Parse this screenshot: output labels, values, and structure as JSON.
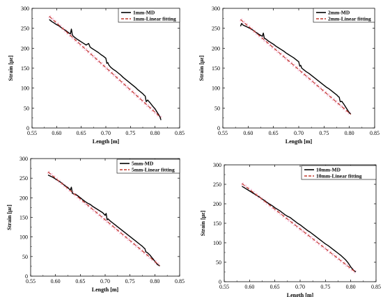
{
  "figure": {
    "background": "#ffffff",
    "colors": {
      "measured": "#000000",
      "fit": "#c0392b",
      "fit_glow": "#f2a0c8"
    }
  },
  "chart_data": [
    {
      "type": "line",
      "xlabel": "Length [m]",
      "ylabel": "Strain [µε]",
      "xlim": [
        0.55,
        0.85
      ],
      "ylim": [
        0,
        300
      ],
      "xticks": [
        "0.55",
        "0.60",
        "0.65",
        "0.70",
        "0.75",
        "0.80",
        "0.85"
      ],
      "yticks": [
        "0",
        "50",
        "100",
        "150",
        "200",
        "250",
        "300"
      ],
      "grid": false,
      "legend_position": "top-right",
      "series": [
        {
          "name": "1mm-MD",
          "style": "solid",
          "x": [
            0.585,
            0.59,
            0.595,
            0.6,
            0.605,
            0.61,
            0.615,
            0.62,
            0.625,
            0.628,
            0.63,
            0.632,
            0.634,
            0.636,
            0.64,
            0.645,
            0.65,
            0.655,
            0.66,
            0.665,
            0.668,
            0.67,
            0.675,
            0.68,
            0.685,
            0.69,
            0.695,
            0.698,
            0.7,
            0.702,
            0.704,
            0.706,
            0.71,
            0.715,
            0.72,
            0.725,
            0.73,
            0.735,
            0.74,
            0.745,
            0.75,
            0.755,
            0.76,
            0.765,
            0.77,
            0.775,
            0.778,
            0.78,
            0.782,
            0.785,
            0.79,
            0.795,
            0.8,
            0.805,
            0.81,
            0.812
          ],
          "y": [
            272,
            267,
            263,
            259,
            256,
            251,
            247,
            243,
            238,
            236,
            248,
            233,
            230,
            228,
            224,
            220,
            216,
            212,
            208,
            212,
            203,
            201,
            197,
            193,
            189,
            184,
            180,
            177,
            175,
            162,
            164,
            158,
            152,
            147,
            143,
            138,
            133,
            127,
            122,
            117,
            112,
            107,
            102,
            96,
            91,
            86,
            82,
            80,
            66,
            70,
            63,
            55,
            48,
            38,
            28,
            20
          ]
        },
        {
          "name": "1mm-Linear fitting",
          "style": "dashed",
          "x": [
            0.585,
            0.812
          ],
          "y": [
            280,
            26
          ]
        }
      ]
    },
    {
      "type": "line",
      "xlabel": "Length [m]",
      "ylabel": "Strain [µε]",
      "xlim": [
        0.55,
        0.85
      ],
      "ylim": [
        0,
        300
      ],
      "xticks": [
        "0.55",
        "0.60",
        "0.65",
        "0.70",
        "0.75",
        "0.80",
        "0.85"
      ],
      "yticks": [
        "0",
        "50",
        "100",
        "150",
        "200",
        "250",
        "300"
      ],
      "grid": false,
      "legend_position": "top-right",
      "series": [
        {
          "name": "2mm-MD",
          "style": "solid",
          "x": [
            0.585,
            0.587,
            0.59,
            0.595,
            0.6,
            0.605,
            0.61,
            0.615,
            0.62,
            0.625,
            0.628,
            0.63,
            0.632,
            0.634,
            0.636,
            0.64,
            0.645,
            0.65,
            0.655,
            0.66,
            0.665,
            0.67,
            0.675,
            0.68,
            0.685,
            0.69,
            0.695,
            0.698,
            0.7,
            0.702,
            0.704,
            0.706,
            0.71,
            0.715,
            0.72,
            0.725,
            0.73,
            0.735,
            0.74,
            0.745,
            0.75,
            0.755,
            0.76,
            0.765,
            0.77,
            0.775,
            0.778,
            0.78,
            0.782,
            0.785,
            0.79,
            0.795,
            0.8,
            0.803
          ],
          "y": [
            255,
            262,
            258,
            255,
            252,
            249,
            245,
            240,
            236,
            232,
            230,
            238,
            225,
            224,
            222,
            218,
            214,
            210,
            205,
            201,
            197,
            193,
            188,
            184,
            180,
            176,
            171,
            168,
            166,
            155,
            157,
            150,
            146,
            141,
            137,
            132,
            127,
            122,
            117,
            112,
            107,
            102,
            98,
            93,
            88,
            83,
            79,
            77,
            66,
            67,
            58,
            48,
            38,
            35
          ]
        },
        {
          "name": "2mm-Linear fitting",
          "style": "dashed",
          "x": [
            0.585,
            0.803
          ],
          "y": [
            272,
            34
          ]
        }
      ]
    },
    {
      "type": "line",
      "xlabel": "Length [m]",
      "ylabel": "Strain [µε]",
      "xlim": [
        0.55,
        0.85
      ],
      "ylim": [
        0,
        300
      ],
      "xticks": [
        "0.55",
        "0.60",
        "0.65",
        "0.70",
        "0.75",
        "0.80",
        "0.85"
      ],
      "yticks": [
        "0",
        "50",
        "100",
        "150",
        "200",
        "250",
        "300"
      ],
      "grid": false,
      "legend_position": "top-right",
      "series": [
        {
          "name": "5mm-MD",
          "style": "solid",
          "x": [
            0.585,
            0.59,
            0.595,
            0.6,
            0.605,
            0.61,
            0.615,
            0.62,
            0.625,
            0.628,
            0.63,
            0.632,
            0.634,
            0.636,
            0.64,
            0.645,
            0.65,
            0.655,
            0.66,
            0.665,
            0.67,
            0.675,
            0.68,
            0.685,
            0.69,
            0.695,
            0.698,
            0.7,
            0.702,
            0.704,
            0.706,
            0.71,
            0.715,
            0.72,
            0.725,
            0.73,
            0.735,
            0.74,
            0.745,
            0.75,
            0.755,
            0.76,
            0.765,
            0.77,
            0.775,
            0.778,
            0.78,
            0.782,
            0.785,
            0.79,
            0.795,
            0.8,
            0.805,
            0.81
          ],
          "y": [
            258,
            255,
            252,
            248,
            244,
            240,
            235,
            230,
            226,
            222,
            220,
            227,
            212,
            210,
            209,
            205,
            200,
            195,
            190,
            186,
            183,
            178,
            174,
            170,
            166,
            162,
            158,
            155,
            160,
            144,
            146,
            141,
            136,
            131,
            126,
            121,
            116,
            111,
            106,
            101,
            96,
            91,
            86,
            81,
            76,
            72,
            70,
            62,
            60,
            54,
            46,
            38,
            30,
            26
          ]
        },
        {
          "name": "5mm-Linear fitting",
          "style": "dashed",
          "x": [
            0.585,
            0.81
          ],
          "y": [
            266,
            27
          ]
        }
      ]
    },
    {
      "type": "line",
      "xlabel": "Length [m]",
      "ylabel": "Strain [µε]",
      "xlim": [
        0.55,
        0.85
      ],
      "ylim": [
        0,
        300
      ],
      "xticks": [
        "0.55",
        "0.60",
        "0.65",
        "0.70",
        "0.75",
        "0.80",
        "0.85"
      ],
      "yticks": [
        "0",
        "50",
        "100",
        "150",
        "200",
        "250",
        "300"
      ],
      "grid": false,
      "legend_position": "top-right",
      "series": [
        {
          "name": "10mm-MD",
          "style": "solid",
          "x": [
            0.585,
            0.59,
            0.595,
            0.6,
            0.605,
            0.61,
            0.615,
            0.62,
            0.625,
            0.63,
            0.635,
            0.64,
            0.645,
            0.65,
            0.655,
            0.66,
            0.665,
            0.67,
            0.675,
            0.68,
            0.685,
            0.69,
            0.695,
            0.7,
            0.705,
            0.71,
            0.715,
            0.72,
            0.725,
            0.73,
            0.735,
            0.74,
            0.745,
            0.75,
            0.755,
            0.76,
            0.765,
            0.77,
            0.775,
            0.78,
            0.785,
            0.79,
            0.795,
            0.8,
            0.805,
            0.81
          ],
          "y": [
            245,
            241,
            237,
            233,
            229,
            225,
            221,
            217,
            212,
            208,
            203,
            199,
            195,
            190,
            186,
            182,
            177,
            172,
            168,
            165,
            160,
            155,
            150,
            146,
            141,
            136,
            131,
            127,
            122,
            117,
            112,
            107,
            102,
            97,
            93,
            88,
            83,
            78,
            73,
            68,
            62,
            56,
            48,
            38,
            30,
            25
          ]
        },
        {
          "name": "10mm-Linear fitting",
          "style": "dashed",
          "x": [
            0.585,
            0.81
          ],
          "y": [
            252,
            24
          ]
        }
      ]
    }
  ]
}
